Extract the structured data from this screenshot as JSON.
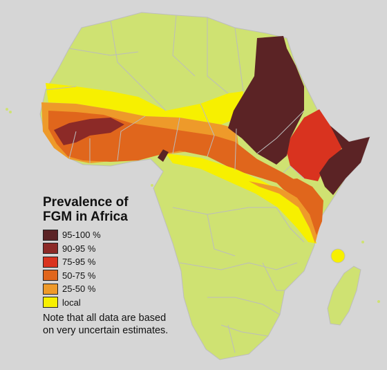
{
  "legend": {
    "title_line1": "Prevalence of",
    "title_line2": "FGM in Africa",
    "items": [
      {
        "label": "95-100 %",
        "color": "#5b2325"
      },
      {
        "label": "90-95 %",
        "color": "#8c2a27"
      },
      {
        "label": "75-95 %",
        "color": "#d9331f"
      },
      {
        "label": "50-75 %",
        "color": "#e0661c"
      },
      {
        "label": "25-50 %",
        "color": "#ee9a2a"
      },
      {
        "label": "local",
        "color": "#f7f000"
      }
    ]
  },
  "note": "Note that all data are based on very uncertain estimates.",
  "colors": {
    "background": "#d6d6d6",
    "land": "#cfe272",
    "border": "#bcbcbc"
  }
}
